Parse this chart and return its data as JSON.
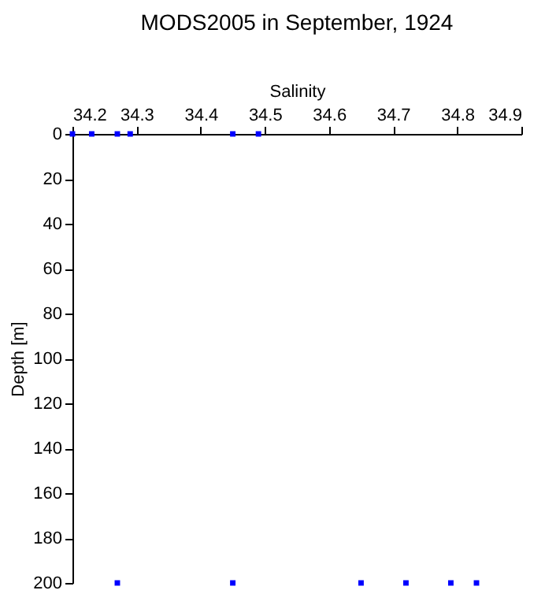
{
  "chart_data": {
    "type": "scatter",
    "title": "MODS2005 in September, 1924",
    "xlabel": "Salinity",
    "ylabel": "Depth [m]",
    "series": [
      {
        "color": "#0000ff",
        "x": [
          34.2,
          34.23,
          34.27,
          34.29,
          34.45,
          34.49,
          34.27,
          34.45,
          34.65,
          34.72,
          34.79,
          34.83
        ],
        "values": [
          0,
          0,
          0,
          0,
          0,
          0,
          200,
          200,
          200,
          200,
          200,
          200
        ]
      }
    ],
    "xlim": [
      34.2,
      34.9
    ],
    "xticks": [
      34.2,
      34.3,
      34.4,
      34.5,
      34.6,
      34.7,
      34.8,
      34.9
    ],
    "ylim": [
      200,
      0
    ],
    "yticks": [
      0,
      20,
      40,
      60,
      80,
      100,
      120,
      140,
      160,
      180,
      200
    ],
    "marker": "square",
    "grid": false
  }
}
